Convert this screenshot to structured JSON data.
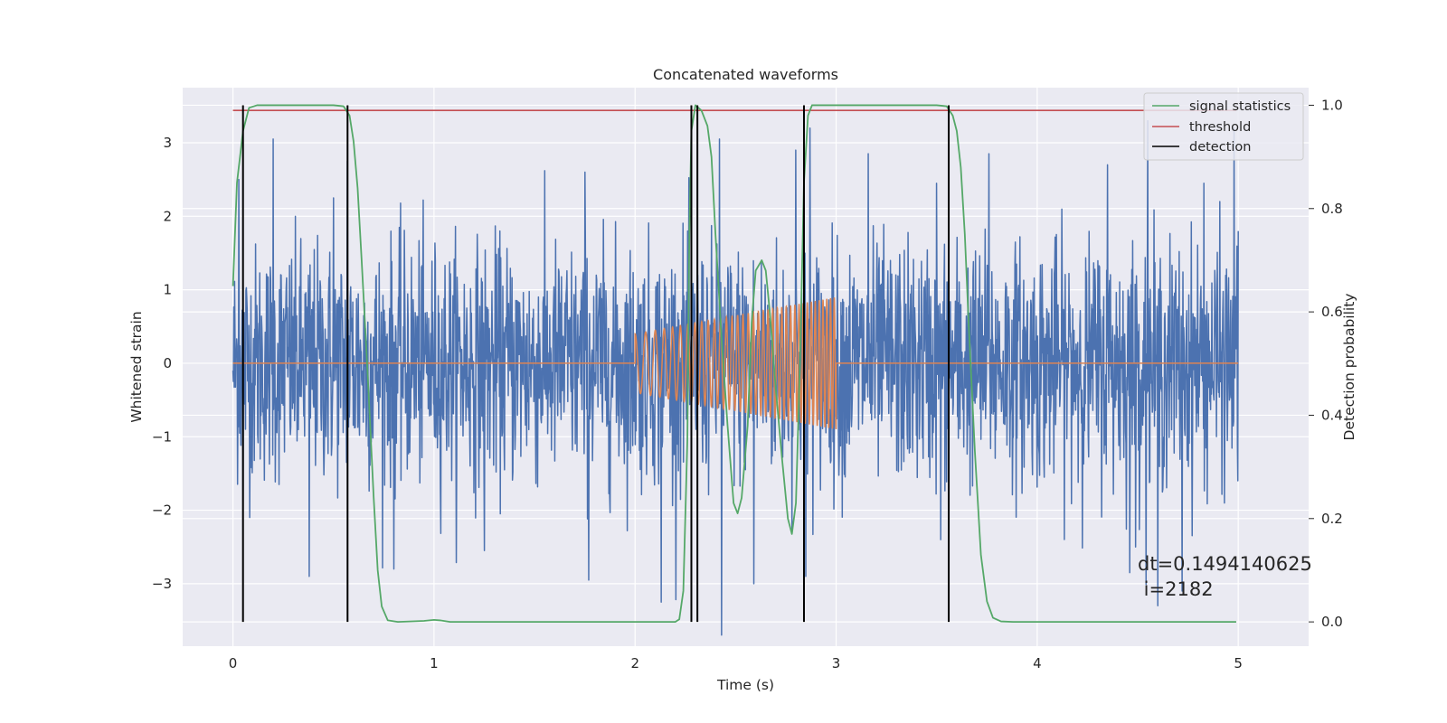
{
  "chart_data": {
    "type": "line",
    "title": "Concatenated waveforms",
    "xlabel": "Time (s)",
    "ylabel": "Whitened strain",
    "ylabel_right": "Detection probability",
    "xlim": [
      -0.25,
      5.35
    ],
    "ylim": [
      -3.85,
      3.75
    ],
    "ylim_right": [
      -0.047,
      1.034
    ],
    "xticks": [
      0,
      1,
      2,
      3,
      4,
      5
    ],
    "yticks": [
      -3,
      -2,
      -1,
      0,
      1,
      2,
      3
    ],
    "yticks_right": [
      0.0,
      0.2,
      0.4,
      0.6,
      0.8,
      1.0
    ],
    "grid": true,
    "legend_position": "top-right",
    "series": [
      {
        "name": "",
        "axis": "left",
        "color": "#4c72b0",
        "kind": "noise",
        "x_range": [
          0,
          5
        ],
        "points": 2400,
        "amplitude_std": 0.8,
        "spikes": [
          {
            "x": 0.0,
            "y": -0.1
          },
          {
            "x": 0.03,
            "y": 2.5
          },
          {
            "x": 0.05,
            "y": -2.4
          },
          {
            "x": 0.2,
            "y": 3.05
          },
          {
            "x": 0.38,
            "y": -2.9
          },
          {
            "x": 0.5,
            "y": 2.25
          },
          {
            "x": 0.57,
            "y": 2.75
          },
          {
            "x": 0.8,
            "y": -2.8
          },
          {
            "x": 1.25,
            "y": -2.55
          },
          {
            "x": 1.75,
            "y": 2.6
          },
          {
            "x": 1.77,
            "y": -2.95
          },
          {
            "x": 2.13,
            "y": -3.25
          },
          {
            "x": 2.42,
            "y": 3.05
          },
          {
            "x": 2.43,
            "y": -3.7
          },
          {
            "x": 2.59,
            "y": -3.0
          },
          {
            "x": 2.8,
            "y": 2.9
          },
          {
            "x": 2.85,
            "y": -2.9
          },
          {
            "x": 2.87,
            "y": 3.2
          },
          {
            "x": 3.16,
            "y": 2.85
          },
          {
            "x": 3.5,
            "y": 2.45
          },
          {
            "x": 3.52,
            "y": -2.4
          },
          {
            "x": 3.76,
            "y": 2.85
          },
          {
            "x": 4.35,
            "y": 2.7
          },
          {
            "x": 4.46,
            "y": -2.85
          },
          {
            "x": 4.49,
            "y": -2.5
          },
          {
            "x": 4.55,
            "y": 3.4
          },
          {
            "x": 4.6,
            "y": -3.3
          },
          {
            "x": 4.72,
            "y": -3.1
          },
          {
            "x": 4.83,
            "y": 2.45
          },
          {
            "x": 4.98,
            "y": 3.2
          },
          {
            "x": 5.0,
            "y": 1.8
          }
        ]
      },
      {
        "name": "",
        "axis": "left",
        "color": "#dd8452",
        "kind": "chirp",
        "zero_from": [
          0,
          2
        ],
        "chirp_range": [
          2,
          3
        ],
        "zero_to": [
          3,
          5
        ],
        "amplitude_start": 0.4,
        "amplitude_end": 0.9,
        "frequency_start": 18,
        "frequency_end": 55
      },
      {
        "name": "signal statistics",
        "axis": "right",
        "color": "#55a868",
        "points": [
          [
            0,
            0.65
          ],
          [
            0.02,
            0.85
          ],
          [
            0.05,
            0.95
          ],
          [
            0.08,
            0.995
          ],
          [
            0.12,
            1.0
          ],
          [
            0.5,
            1.0
          ],
          [
            0.55,
            0.998
          ],
          [
            0.58,
            0.98
          ],
          [
            0.6,
            0.93
          ],
          [
            0.62,
            0.84
          ],
          [
            0.64,
            0.7
          ],
          [
            0.67,
            0.48
          ],
          [
            0.7,
            0.24
          ],
          [
            0.72,
            0.1
          ],
          [
            0.74,
            0.03
          ],
          [
            0.77,
            0.003
          ],
          [
            0.82,
            0.0
          ],
          [
            0.95,
            0.002
          ],
          [
            1.0,
            0.004
          ],
          [
            1.03,
            0.003
          ],
          [
            1.08,
            0.0
          ],
          [
            2.2,
            0.0
          ],
          [
            2.22,
            0.005
          ],
          [
            2.24,
            0.06
          ],
          [
            2.26,
            0.35
          ],
          [
            2.27,
            0.75
          ],
          [
            2.28,
            0.95
          ],
          [
            2.3,
            1.0
          ],
          [
            2.33,
            0.99
          ],
          [
            2.36,
            0.96
          ],
          [
            2.38,
            0.9
          ],
          [
            2.4,
            0.75
          ],
          [
            2.43,
            0.55
          ],
          [
            2.46,
            0.38
          ],
          [
            2.49,
            0.23
          ],
          [
            2.51,
            0.21
          ],
          [
            2.53,
            0.24
          ],
          [
            2.56,
            0.38
          ],
          [
            2.58,
            0.58
          ],
          [
            2.6,
            0.68
          ],
          [
            2.63,
            0.7
          ],
          [
            2.65,
            0.68
          ],
          [
            2.67,
            0.6
          ],
          [
            2.7,
            0.45
          ],
          [
            2.73,
            0.32
          ],
          [
            2.76,
            0.2
          ],
          [
            2.78,
            0.17
          ],
          [
            2.8,
            0.23
          ],
          [
            2.82,
            0.5
          ],
          [
            2.84,
            0.85
          ],
          [
            2.86,
            0.98
          ],
          [
            2.88,
            1.0
          ],
          [
            2.92,
            1.0
          ],
          [
            3.5,
            1.0
          ],
          [
            3.55,
            0.998
          ],
          [
            3.58,
            0.98
          ],
          [
            3.6,
            0.95
          ],
          [
            3.62,
            0.88
          ],
          [
            3.64,
            0.75
          ],
          [
            3.66,
            0.57
          ],
          [
            3.69,
            0.33
          ],
          [
            3.72,
            0.13
          ],
          [
            3.75,
            0.04
          ],
          [
            3.78,
            0.008
          ],
          [
            3.82,
            0.001
          ],
          [
            3.88,
            0.0
          ],
          [
            4.99,
            0.0
          ]
        ]
      },
      {
        "name": "threshold",
        "axis": "right",
        "color": "#c44e52",
        "points": [
          [
            0,
            0.99
          ],
          [
            4.99,
            0.99
          ]
        ]
      },
      {
        "name": "detection",
        "axis": "right",
        "color": "#000000",
        "kind": "vlines",
        "x": [
          0.05,
          0.57,
          2.28,
          2.31,
          2.84,
          3.56
        ],
        "ymin": 0.0,
        "ymax": 1.0
      }
    ],
    "annotation": {
      "line1": "dt=0.1494140625",
      "line2": " i=2182"
    },
    "colors": {
      "axes_background": "#eaeaf2",
      "grid": "#ffffff",
      "text": "#262626"
    }
  }
}
